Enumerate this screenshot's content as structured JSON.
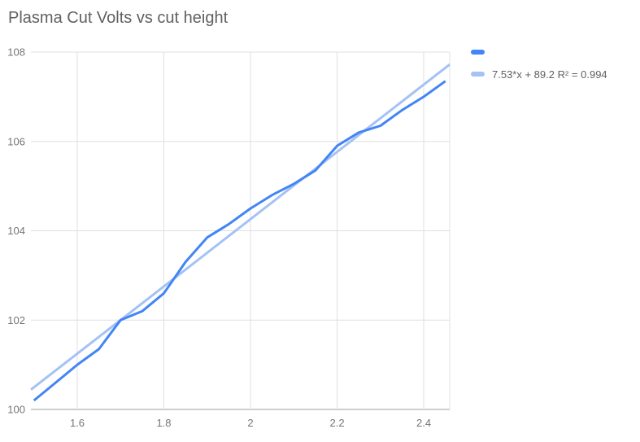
{
  "chart_title": "Plasma Cut Volts vs cut height",
  "colors": {
    "series": "#4285f4",
    "trend": "#a4c2f4",
    "grid": "#e0e0e0",
    "axis_line": "#9e9e9e",
    "tick_text": "#757575",
    "title_text": "#616161",
    "background": "#ffffff"
  },
  "legend": {
    "series_label": "",
    "trend_label": "7.53*x + 89.2 R² = 0.994"
  },
  "chart_data": {
    "type": "line",
    "title": "Plasma Cut Volts vs cut height",
    "xlabel": "",
    "ylabel": "",
    "grid": true,
    "legend_position": "right",
    "x_range": [
      1.493,
      2.46
    ],
    "y_range": [
      100,
      108
    ],
    "x_ticks": [
      {
        "v": 1.6,
        "label": "1.6"
      },
      {
        "v": 1.8,
        "label": "1.8"
      },
      {
        "v": 2.0,
        "label": "2"
      },
      {
        "v": 2.2,
        "label": "2.2"
      },
      {
        "v": 2.4,
        "label": "2.4"
      }
    ],
    "y_ticks": [
      {
        "v": 100,
        "label": "100"
      },
      {
        "v": 102,
        "label": "102"
      },
      {
        "v": 104,
        "label": "104"
      },
      {
        "v": 106,
        "label": "106"
      },
      {
        "v": 108,
        "label": "108"
      }
    ],
    "series": [
      {
        "name": "",
        "color": "#4285f4",
        "points": [
          [
            1.5,
            100.2
          ],
          [
            1.55,
            100.6
          ],
          [
            1.6,
            101.0
          ],
          [
            1.65,
            101.35
          ],
          [
            1.7,
            102.0
          ],
          [
            1.75,
            102.2
          ],
          [
            1.8,
            102.6
          ],
          [
            1.85,
            103.3
          ],
          [
            1.9,
            103.85
          ],
          [
            1.95,
            104.15
          ],
          [
            2.0,
            104.5
          ],
          [
            2.05,
            104.8
          ],
          [
            2.1,
            105.05
          ],
          [
            2.15,
            105.35
          ],
          [
            2.2,
            105.9
          ],
          [
            2.25,
            106.2
          ],
          [
            2.3,
            106.35
          ],
          [
            2.35,
            106.7
          ],
          [
            2.4,
            107.0
          ],
          [
            2.45,
            107.35
          ]
        ]
      }
    ],
    "trendline": {
      "slope": 7.53,
      "intercept": 89.2,
      "r2": 0.994,
      "color": "#a4c2f4",
      "label": "7.53*x + 89.2 R² = 0.994"
    }
  }
}
